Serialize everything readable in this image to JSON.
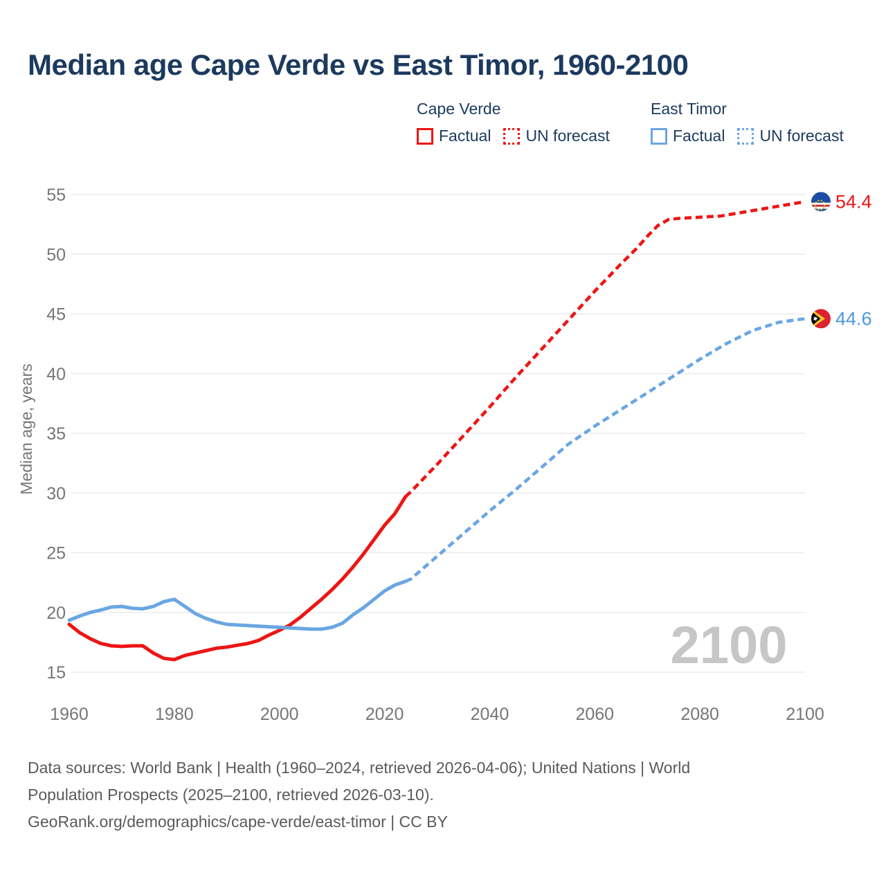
{
  "title": "Median age Cape Verde vs East Timor, 1960-2100",
  "legend": {
    "groups": [
      {
        "name": "Cape Verde",
        "color": "#ed1515",
        "items": [
          {
            "label": "Factual",
            "style": "solid"
          },
          {
            "label": "UN forecast",
            "style": "dotted"
          }
        ]
      },
      {
        "name": "East Timor",
        "color": "#6aa6e3",
        "items": [
          {
            "label": "Factual",
            "style": "solid"
          },
          {
            "label": "UN forecast",
            "style": "dotted"
          }
        ]
      }
    ]
  },
  "chart_data": {
    "type": "line",
    "title": "Median age Cape Verde vs East Timor, 1960-2100",
    "xlabel": "",
    "ylabel": "Median age, years",
    "x_ticks": [
      1960,
      1980,
      2000,
      2020,
      2040,
      2060,
      2080,
      2100
    ],
    "y_ticks": [
      55,
      50,
      45,
      40,
      35,
      30,
      25,
      20,
      15
    ],
    "xlim": [
      1960,
      2100
    ],
    "ylim": [
      15,
      55
    ],
    "grid": "horizontal",
    "legend_position": "top-right",
    "watermark": "2100",
    "colors": {
      "grid": "#ebebee",
      "axis_text": "#767676",
      "watermark": "#c6c6c6"
    },
    "series": [
      {
        "name": "Cape Verde Factual",
        "color": "#ed1515",
        "style": "solid",
        "points": [
          [
            1960,
            19.0
          ],
          [
            1962,
            18.3
          ],
          [
            1964,
            17.8
          ],
          [
            1966,
            17.4
          ],
          [
            1968,
            17.2
          ],
          [
            1970,
            17.15
          ],
          [
            1972,
            17.2
          ],
          [
            1974,
            17.2
          ],
          [
            1976,
            16.6
          ],
          [
            1978,
            16.15
          ],
          [
            1980,
            16.05
          ],
          [
            1982,
            16.4
          ],
          [
            1984,
            16.6
          ],
          [
            1986,
            16.8
          ],
          [
            1988,
            17.0
          ],
          [
            1990,
            17.1
          ],
          [
            1992,
            17.25
          ],
          [
            1994,
            17.4
          ],
          [
            1996,
            17.65
          ],
          [
            1998,
            18.1
          ],
          [
            2000,
            18.5
          ],
          [
            2002,
            18.95
          ],
          [
            2004,
            19.6
          ],
          [
            2006,
            20.35
          ],
          [
            2008,
            21.1
          ],
          [
            2010,
            21.9
          ],
          [
            2012,
            22.8
          ],
          [
            2014,
            23.8
          ],
          [
            2016,
            24.9
          ],
          [
            2018,
            26.1
          ],
          [
            2020,
            27.3
          ],
          [
            2022,
            28.3
          ],
          [
            2024,
            29.7
          ]
        ]
      },
      {
        "name": "Cape Verde UN forecast",
        "color": "#ed1515",
        "style": "dashed",
        "points": [
          [
            2024,
            29.7
          ],
          [
            2025,
            30.1
          ],
          [
            2030,
            32.4
          ],
          [
            2035,
            34.8
          ],
          [
            2040,
            37.2
          ],
          [
            2045,
            39.7
          ],
          [
            2050,
            42.1
          ],
          [
            2055,
            44.5
          ],
          [
            2060,
            46.9
          ],
          [
            2065,
            49.2
          ],
          [
            2068,
            50.5
          ],
          [
            2070,
            51.5
          ],
          [
            2072,
            52.4
          ],
          [
            2074,
            52.9
          ],
          [
            2076,
            53.0
          ],
          [
            2080,
            53.1
          ],
          [
            2084,
            53.2
          ],
          [
            2088,
            53.5
          ],
          [
            2092,
            53.8
          ],
          [
            2096,
            54.1
          ],
          [
            2100,
            54.4
          ]
        ]
      },
      {
        "name": "East Timor Factual",
        "color": "#6aa6e3",
        "style": "solid",
        "points": [
          [
            1960,
            19.35
          ],
          [
            1962,
            19.7
          ],
          [
            1964,
            20.0
          ],
          [
            1966,
            20.2
          ],
          [
            1968,
            20.45
          ],
          [
            1970,
            20.5
          ],
          [
            1972,
            20.35
          ],
          [
            1974,
            20.3
          ],
          [
            1976,
            20.5
          ],
          [
            1978,
            20.9
          ],
          [
            1980,
            21.1
          ],
          [
            1982,
            20.5
          ],
          [
            1984,
            19.9
          ],
          [
            1986,
            19.5
          ],
          [
            1988,
            19.2
          ],
          [
            1990,
            19.0
          ],
          [
            1992,
            18.95
          ],
          [
            1994,
            18.9
          ],
          [
            1996,
            18.85
          ],
          [
            1998,
            18.8
          ],
          [
            2000,
            18.75
          ],
          [
            2002,
            18.7
          ],
          [
            2004,
            18.65
          ],
          [
            2006,
            18.6
          ],
          [
            2008,
            18.6
          ],
          [
            2010,
            18.75
          ],
          [
            2012,
            19.1
          ],
          [
            2014,
            19.8
          ],
          [
            2016,
            20.4
          ],
          [
            2018,
            21.1
          ],
          [
            2020,
            21.8
          ],
          [
            2022,
            22.3
          ],
          [
            2024,
            22.6
          ]
        ]
      },
      {
        "name": "East Timor UN forecast",
        "color": "#6aa6e3",
        "style": "dashed",
        "points": [
          [
            2024,
            22.6
          ],
          [
            2025,
            22.8
          ],
          [
            2030,
            24.7
          ],
          [
            2035,
            26.6
          ],
          [
            2040,
            28.5
          ],
          [
            2045,
            30.3
          ],
          [
            2050,
            32.2
          ],
          [
            2055,
            34.1
          ],
          [
            2060,
            35.6
          ],
          [
            2065,
            37.0
          ],
          [
            2070,
            38.4
          ],
          [
            2075,
            39.8
          ],
          [
            2080,
            41.2
          ],
          [
            2085,
            42.5
          ],
          [
            2090,
            43.6
          ],
          [
            2095,
            44.3
          ],
          [
            2100,
            44.6
          ]
        ]
      }
    ],
    "end_markers": [
      {
        "series": "Cape Verde",
        "flag": "cape-verde",
        "value": 54.4,
        "label": "54.4",
        "color": "#ed1515"
      },
      {
        "series": "East Timor",
        "flag": "east-timor",
        "value": 44.6,
        "label": "44.6",
        "color": "#4f97dd"
      }
    ]
  },
  "footer": {
    "lines": [
      "Data sources: World Bank | Health (1960–2024, retrieved 2026-04-06); United Nations | World",
      "Population Prospects (2025–2100, retrieved 2026-03-10).",
      "GeoRank.org/demographics/cape-verde/east-timor | CC BY"
    ]
  }
}
